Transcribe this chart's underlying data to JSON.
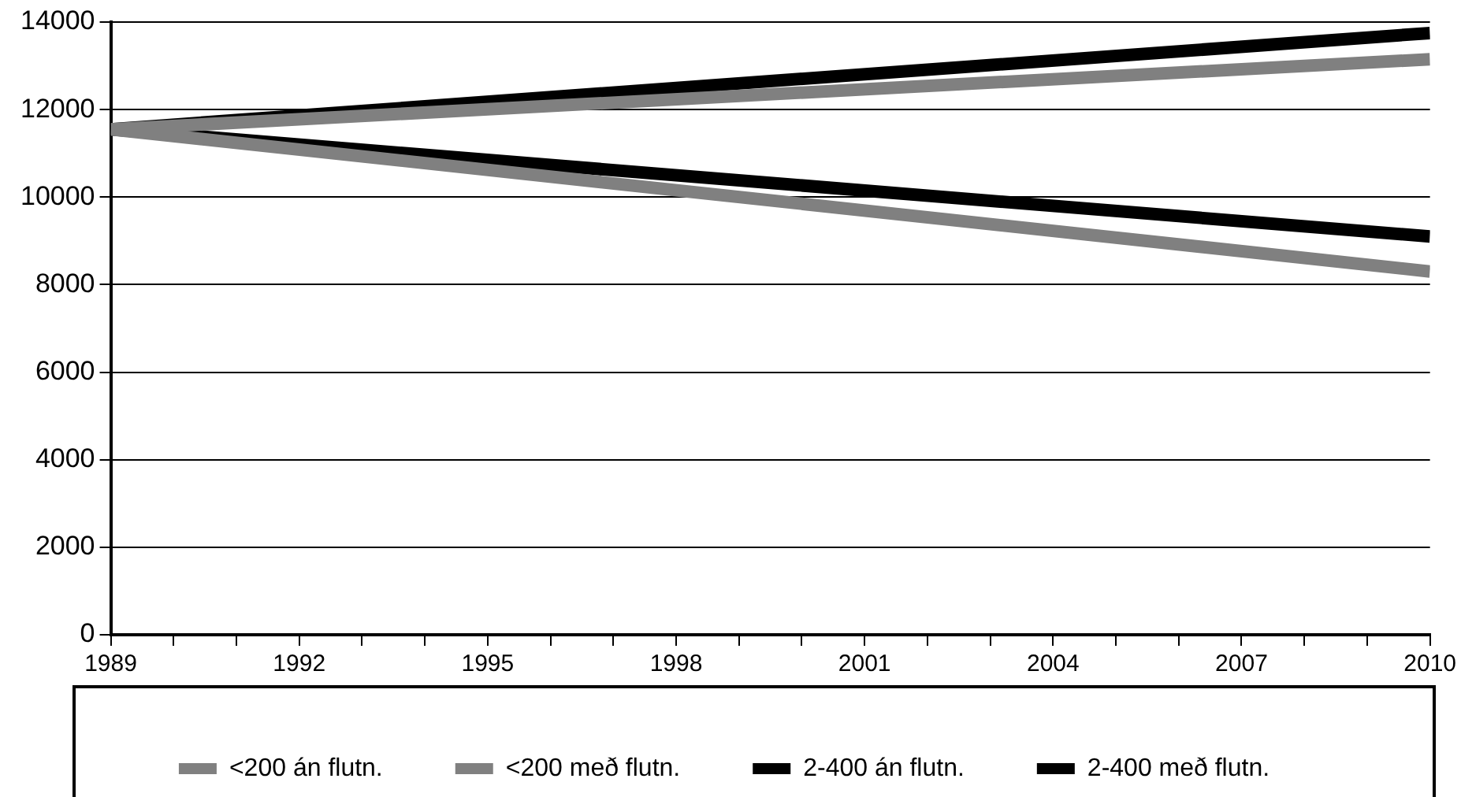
{
  "chart_data": {
    "type": "line",
    "x": [
      1989,
      2010
    ],
    "series": [
      {
        "name": "<200 án flutn.",
        "color": "#808080",
        "values": [
          11550,
          8300
        ]
      },
      {
        "name": "<200 með flutn.",
        "color": "#808080",
        "values": [
          11550,
          13150
        ]
      },
      {
        "name": "2-400 án flutn.",
        "color": "#000000",
        "values": [
          11550,
          9100
        ]
      },
      {
        "name": "2-400 með flutn.",
        "color": "#000000",
        "values": [
          11550,
          13750
        ]
      }
    ],
    "xlim": [
      1989,
      2010
    ],
    "xticks": [
      1989,
      {
        "value": 1990,
        "label": null
      },
      {
        "value": 1991,
        "label": null
      },
      1992,
      {
        "value": 1993,
        "label": null
      },
      {
        "value": 1994,
        "label": null
      },
      1995,
      {
        "value": 1996,
        "label": null
      },
      {
        "value": 1997,
        "label": null
      },
      1998,
      {
        "value": 1999,
        "label": null
      },
      {
        "value": 2000,
        "label": null
      },
      2001,
      {
        "value": 2002,
        "label": null
      },
      {
        "value": 2003,
        "label": null
      },
      2004,
      {
        "value": 2005,
        "label": null
      },
      {
        "value": 2006,
        "label": null
      },
      2007,
      {
        "value": 2008,
        "label": null
      },
      {
        "value": 2009,
        "label": null
      },
      2010
    ],
    "ylim": [
      0,
      14000
    ],
    "yticks": [
      0,
      2000,
      4000,
      6000,
      8000,
      10000,
      12000,
      14000
    ],
    "grid": "y",
    "legend": "bottom",
    "marker": "none",
    "line_style": "solid"
  }
}
